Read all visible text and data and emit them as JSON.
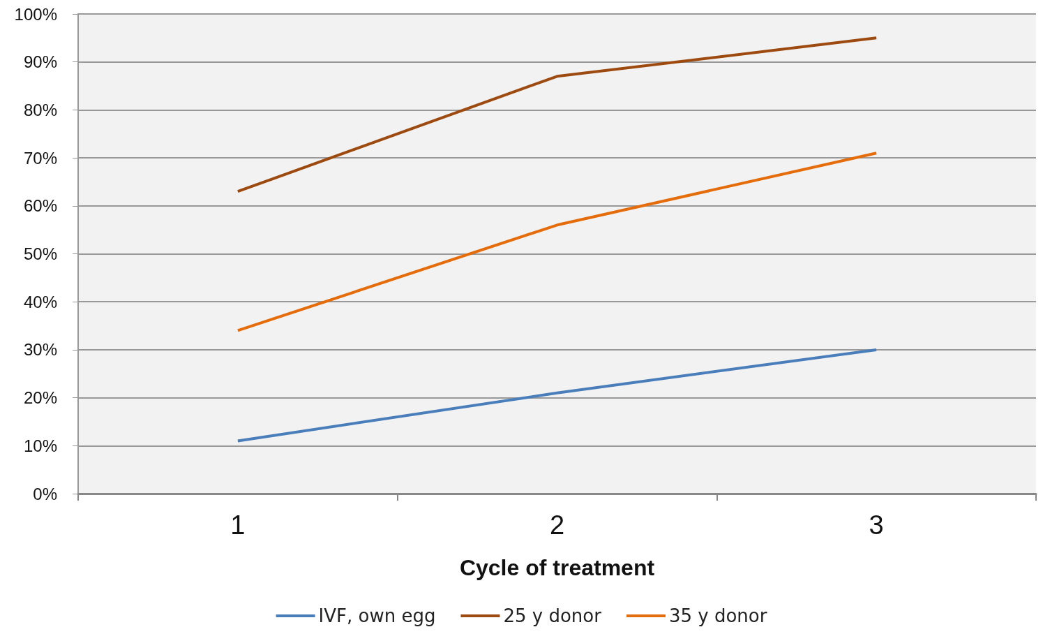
{
  "chart_data": {
    "type": "line",
    "xlabel": "Cycle of treatment",
    "categories": [
      "1",
      "2",
      "3"
    ],
    "series": [
      {
        "name": "IVF, own egg",
        "color": "#4a7ebb",
        "values": [
          11,
          21,
          30
        ]
      },
      {
        "name": "25 y donor",
        "color": "#9c4a10",
        "values": [
          63,
          87,
          95
        ]
      },
      {
        "name": "35 y donor",
        "color": "#e46c0a",
        "values": [
          34,
          56,
          71
        ]
      }
    ],
    "ylim": [
      0,
      100
    ],
    "yticks": [
      {
        "value": 0,
        "label": "0%"
      },
      {
        "value": 10,
        "label": "10%"
      },
      {
        "value": 20,
        "label": "20%"
      },
      {
        "value": 30,
        "label": "30%"
      },
      {
        "value": 40,
        "label": "40%"
      },
      {
        "value": 50,
        "label": "50%"
      },
      {
        "value": 60,
        "label": "60%"
      },
      {
        "value": 70,
        "label": "70%"
      },
      {
        "value": 80,
        "label": "80%"
      },
      {
        "value": 90,
        "label": "90%"
      },
      {
        "value": 100,
        "label": "100%"
      }
    ],
    "grid": "y",
    "legend": "bottom"
  }
}
